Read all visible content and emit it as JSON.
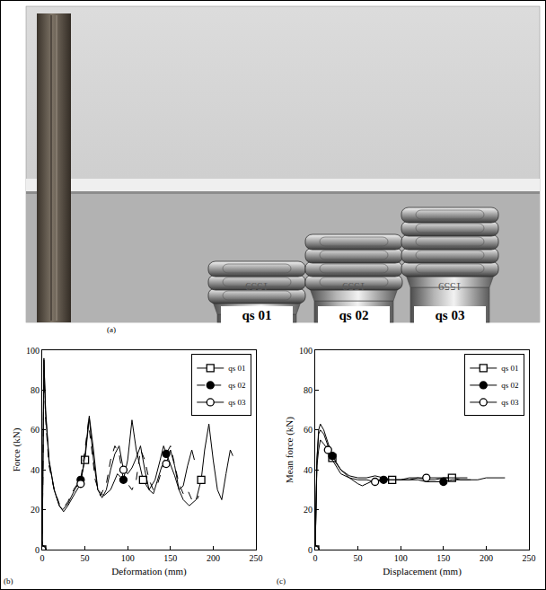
{
  "panels": {
    "a": {
      "panel_label": "(a)",
      "specimens": [
        "qs 01",
        "qs 02",
        "qs 03"
      ],
      "specimen_marking": "1559"
    }
  },
  "chart_data": [
    {
      "type": "line",
      "panel_label": "(b)",
      "x_label": "Deformation (mm)",
      "y_label": "Force (kN)",
      "xlim": [
        0,
        250
      ],
      "ylim": [
        0,
        100
      ],
      "xticks": [
        0,
        50,
        100,
        150,
        200,
        250
      ],
      "yticks": [
        0,
        20,
        40,
        60,
        80,
        100
      ],
      "grid": false,
      "legend": "upper right",
      "series": [
        {
          "name": "qs 01",
          "color": "#000000",
          "marker": "square-open",
          "line_style": "solid",
          "x": [
            0,
            1,
            2,
            4,
            8,
            14,
            20,
            24,
            30,
            38,
            45,
            50,
            55,
            60,
            65,
            72,
            80,
            88,
            95,
            100,
            105,
            110,
            118,
            125,
            132,
            138,
            142,
            148,
            155,
            160,
            165,
            172,
            180,
            186,
            190,
            195,
            200,
            205,
            210,
            215,
            220,
            223
          ],
          "values": [
            0,
            60,
            96,
            70,
            45,
            30,
            22,
            20,
            23,
            30,
            35,
            45,
            66,
            45,
            30,
            27,
            30,
            38,
            35,
            45,
            65,
            50,
            35,
            30,
            35,
            45,
            52,
            45,
            37,
            30,
            25,
            22,
            25,
            35,
            50,
            63,
            45,
            30,
            25,
            38,
            50,
            47
          ]
        },
        {
          "name": "qs 02",
          "color": "#000000",
          "marker": "circle",
          "line_style": "dashed",
          "x": [
            0,
            1,
            2,
            4,
            8,
            14,
            20,
            25,
            30,
            38,
            45,
            50,
            54,
            58,
            62,
            68,
            75,
            80,
            85,
            90,
            95,
            100,
            105,
            110,
            115,
            120,
            125,
            130,
            135,
            140,
            145,
            150,
            155,
            160,
            165,
            170,
            175,
            180,
            183
          ],
          "values": [
            0,
            55,
            90,
            65,
            42,
            30,
            23,
            21,
            24,
            31,
            35,
            50,
            64,
            50,
            35,
            27,
            33,
            45,
            52,
            48,
            35,
            33,
            30,
            35,
            50,
            45,
            35,
            30,
            33,
            40,
            48,
            52,
            42,
            33,
            28,
            30,
            25,
            24,
            27
          ]
        },
        {
          "name": "qs 03",
          "color": "#000000",
          "marker": "circle-open",
          "line_style": "solid",
          "x": [
            0,
            1,
            2,
            4,
            8,
            14,
            20,
            25,
            30,
            38,
            45,
            50,
            55,
            60,
            65,
            70,
            75,
            80,
            85,
            90,
            95,
            100,
            105,
            110,
            115,
            120,
            125,
            130,
            135,
            140,
            145,
            150,
            155,
            160,
            165,
            170,
            175,
            178
          ],
          "values": [
            0,
            58,
            95,
            68,
            44,
            30,
            22,
            19,
            22,
            28,
            33,
            47,
            67,
            50,
            30,
            26,
            30,
            40,
            48,
            52,
            40,
            38,
            41,
            46,
            52,
            40,
            30,
            28,
            35,
            42,
            43,
            50,
            42,
            30,
            32,
            42,
            50,
            45
          ]
        }
      ]
    },
    {
      "type": "line",
      "panel_label": "(c)",
      "x_label": "Displacement (mm)",
      "y_label": "Mean force (kN)",
      "xlim": [
        0,
        250
      ],
      "ylim": [
        0,
        100
      ],
      "xticks": [
        0,
        50,
        100,
        150,
        200,
        250
      ],
      "yticks": [
        0,
        20,
        40,
        60,
        80,
        100
      ],
      "grid": false,
      "legend": "upper right",
      "series": [
        {
          "name": "qs 01",
          "color": "#000000",
          "marker": "square-open",
          "line_style": "solid",
          "x": [
            0,
            1,
            2,
            4,
            6,
            10,
            15,
            20,
            30,
            40,
            50,
            60,
            70,
            80,
            90,
            100,
            110,
            120,
            130,
            140,
            150,
            160,
            170,
            180,
            190,
            200,
            210,
            222
          ],
          "values": [
            0,
            20,
            45,
            58,
            60,
            58,
            52,
            46,
            40,
            37,
            36,
            36,
            37,
            36,
            35,
            35,
            36,
            36,
            35,
            35,
            36,
            36,
            35,
            35,
            35,
            36,
            36,
            36
          ]
        },
        {
          "name": "qs 02",
          "color": "#000000",
          "marker": "circle",
          "line_style": "solid",
          "x": [
            0,
            1,
            2,
            4,
            6,
            10,
            15,
            20,
            30,
            40,
            50,
            55,
            60,
            70,
            80,
            90,
            100,
            110,
            120,
            130,
            140,
            150,
            160,
            170,
            182
          ],
          "values": [
            0,
            25,
            45,
            60,
            63,
            60,
            54,
            47,
            40,
            36,
            33,
            32,
            33,
            35,
            35,
            35,
            35,
            35,
            35,
            34,
            34,
            34,
            35,
            35,
            35
          ]
        },
        {
          "name": "qs 03",
          "color": "#000000",
          "marker": "circle-open",
          "line_style": "solid",
          "x": [
            0,
            1,
            2,
            4,
            6,
            10,
            15,
            20,
            30,
            40,
            50,
            60,
            70,
            80,
            90,
            100,
            110,
            120,
            130,
            140,
            150,
            160,
            170,
            178
          ],
          "values": [
            0,
            30,
            42,
            50,
            55,
            53,
            50,
            45,
            38,
            36,
            35,
            35,
            34,
            35,
            35,
            35,
            35,
            36,
            36,
            36,
            36,
            36,
            36,
            36
          ]
        }
      ]
    }
  ]
}
